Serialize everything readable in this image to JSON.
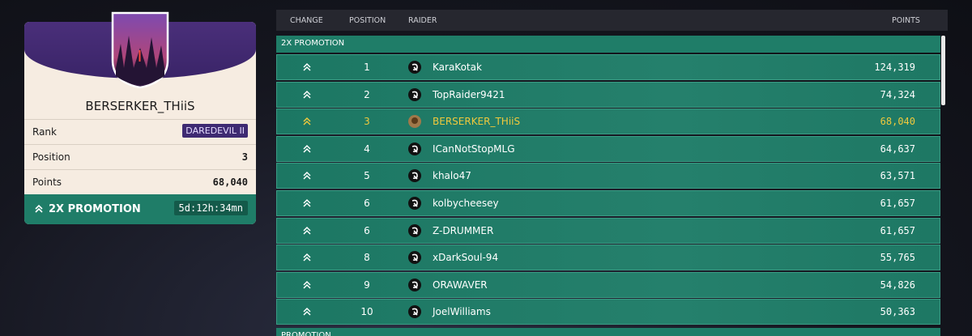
{
  "profile": {
    "name": "BERSERKER_THiiS",
    "stats": [
      {
        "label": "Rank",
        "value": "DAREDEVIL II"
      },
      {
        "label": "Position",
        "value": "3"
      },
      {
        "label": "Points",
        "value": "68,040"
      }
    ],
    "promotion": "2X PROMOTION",
    "timer": "5d:12h:34mn"
  },
  "leaderboard": {
    "columns": [
      "CHANGE",
      "POSITION",
      "RAIDER",
      "POINTS"
    ],
    "sections": [
      {
        "title": "2X PROMOTION",
        "rows": [
          {
            "position": 1,
            "raider": "KaraKotak",
            "points": "124,319"
          },
          {
            "position": 2,
            "raider": "TopRaider9421",
            "points": "74,324"
          },
          {
            "position": 3,
            "raider": "BERSERKER_THiiS",
            "points": "68,040",
            "highlighted": true
          },
          {
            "position": 4,
            "raider": "ICanNotStopMLG",
            "points": "64,637"
          },
          {
            "position": 5,
            "raider": "khalo47",
            "points": "63,571"
          },
          {
            "position": 6,
            "raider": "kolbycheesey",
            "points": "61,657"
          },
          {
            "position": 6,
            "raider": "Z-DRUMMER",
            "points": "61,657"
          },
          {
            "position": 8,
            "raider": "xDarkSoul-94",
            "points": "55,765"
          },
          {
            "position": 9,
            "raider": "ORAWAVER",
            "points": "54,826"
          },
          {
            "position": 10,
            "raider": "JoelWilliams",
            "points": "50,363"
          }
        ]
      },
      {
        "title": "PROMOTION"
      }
    ]
  }
}
